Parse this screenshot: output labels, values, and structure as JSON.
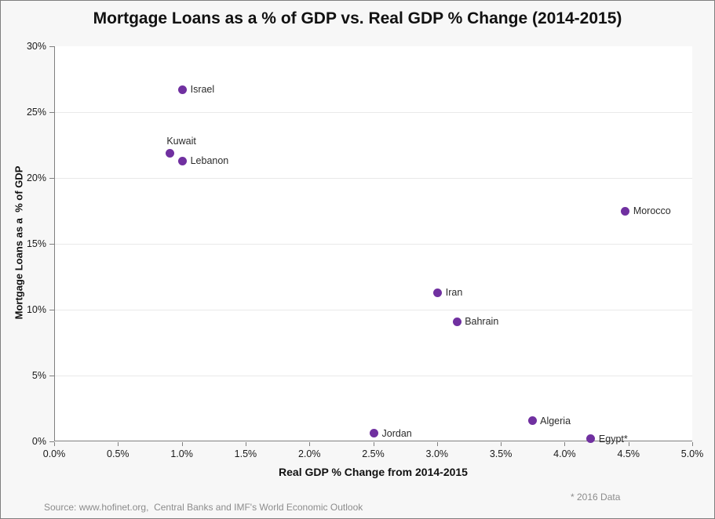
{
  "title": "Mortgage Loans as a % of GDP vs. Real GDP % Change (2014-2015)",
  "footnote": "* 2016 Data",
  "source": "Source: www.hofinet.org,  Central Banks and IMF's World Economic Outlook",
  "colors": {
    "dot": "#7030A0",
    "axis": "#808080",
    "grid": "#e9e9e9",
    "page_bg": "#f7f7f7",
    "plot_bg": "#ffffff",
    "muted_text": "#8c8c8c"
  },
  "chart_data": {
    "type": "scatter",
    "title": "Mortgage Loans as a % of GDP vs. Real GDP % Change (2014-2015)",
    "xlabel": "Real GDP % Change from 2014-2015",
    "ylabel": "Mortgage Loans as a  % of GDP",
    "xlim": [
      0,
      5
    ],
    "ylim": [
      0,
      30
    ],
    "x_ticks": [
      "0.0%",
      "0.5%",
      "1.0%",
      "1.5%",
      "2.0%",
      "2.5%",
      "3.0%",
      "3.5%",
      "4.0%",
      "4.5%",
      "5.0%"
    ],
    "x_tick_values": [
      0,
      0.5,
      1.0,
      1.5,
      2.0,
      2.5,
      3.0,
      3.5,
      4.0,
      4.5,
      5.0
    ],
    "y_ticks": [
      "0%",
      "5%",
      "10%",
      "15%",
      "20%",
      "25%",
      "30%"
    ],
    "y_tick_values": [
      0,
      5,
      10,
      15,
      20,
      25,
      30
    ],
    "grid_y_values": [
      5,
      10,
      15,
      20,
      25
    ],
    "grid": "horizontal-only",
    "legend": "none",
    "marker_color": "#7030A0",
    "points": [
      {
        "name": "Israel",
        "x": 1.0,
        "y": 26.7,
        "label_position": "right"
      },
      {
        "name": "Kuwait",
        "x": 0.9,
        "y": 21.9,
        "label_position": "above"
      },
      {
        "name": "Lebanon",
        "x": 1.0,
        "y": 21.3,
        "label_position": "right"
      },
      {
        "name": "Morocco",
        "x": 4.47,
        "y": 17.5,
        "label_position": "right"
      },
      {
        "name": "Iran",
        "x": 3.0,
        "y": 11.3,
        "label_position": "right"
      },
      {
        "name": "Bahrain",
        "x": 3.15,
        "y": 9.1,
        "label_position": "right"
      },
      {
        "name": "Jordan",
        "x": 2.5,
        "y": 0.6,
        "label_position": "right"
      },
      {
        "name": "Algeria",
        "x": 3.74,
        "y": 1.55,
        "label_position": "right"
      },
      {
        "name": "Egypt*",
        "x": 4.2,
        "y": 0.2,
        "label_position": "right"
      }
    ]
  }
}
